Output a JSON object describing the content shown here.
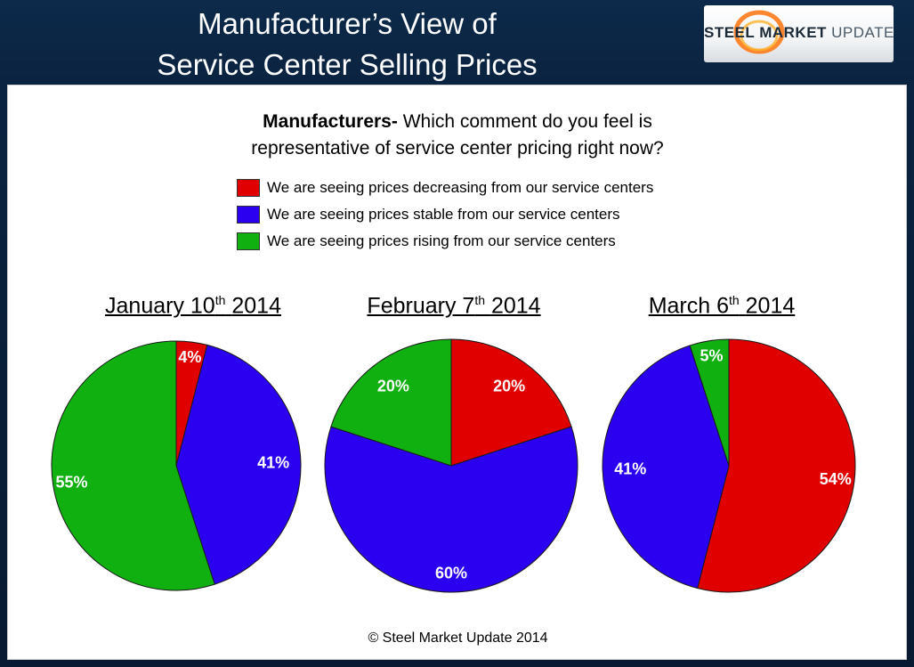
{
  "header": {
    "title_line1": "Manufacturer’s View of",
    "title_line2": "Service Center Selling Prices"
  },
  "logo": {
    "strong": "STEEL MARKET",
    "light": "UPDATE"
  },
  "question": {
    "bold": "Manufacturers-",
    "text_line1": "Which comment do you feel is",
    "text_line2": "representative of service center pricing right now?"
  },
  "legend": [
    {
      "label": "We are seeing prices decreasing from our service centers",
      "color": "#e00000"
    },
    {
      "label": "We are seeing prices stable from our service centers",
      "color": "#2b00f0"
    },
    {
      "label": "We are seeing prices rising from our service centers",
      "color": "#10b010"
    }
  ],
  "charts": [
    {
      "title_main": "January 10",
      "title_sup": "th",
      "title_year": "2014"
    },
    {
      "title_main": "February 7",
      "title_sup": "th",
      "title_year": "2014"
    },
    {
      "title_main": "March 6",
      "title_sup": "th",
      "title_year": "2014"
    }
  ],
  "chart_data": [
    {
      "type": "pie",
      "title": "January 10th 2014",
      "categories": [
        "Decreasing",
        "Stable",
        "Rising"
      ],
      "values": [
        4,
        41,
        55
      ],
      "labels": [
        "4%",
        "41%",
        "55%"
      ],
      "colors": [
        "#e00000",
        "#2b00f0",
        "#10b010"
      ]
    },
    {
      "type": "pie",
      "title": "February 7th 2014",
      "categories": [
        "Decreasing",
        "Stable",
        "Rising"
      ],
      "values": [
        20,
        60,
        20
      ],
      "labels": [
        "20%",
        "60%",
        "20%"
      ],
      "colors": [
        "#e00000",
        "#2b00f0",
        "#10b010"
      ]
    },
    {
      "type": "pie",
      "title": "March 6th 2014",
      "categories": [
        "Decreasing",
        "Stable",
        "Rising"
      ],
      "values": [
        54,
        41,
        5
      ],
      "labels": [
        "54%",
        "41%",
        "5%"
      ],
      "colors": [
        "#e00000",
        "#2b00f0",
        "#10b010"
      ]
    }
  ],
  "footer": {
    "copyright": "© Steel Market Update 2014"
  }
}
